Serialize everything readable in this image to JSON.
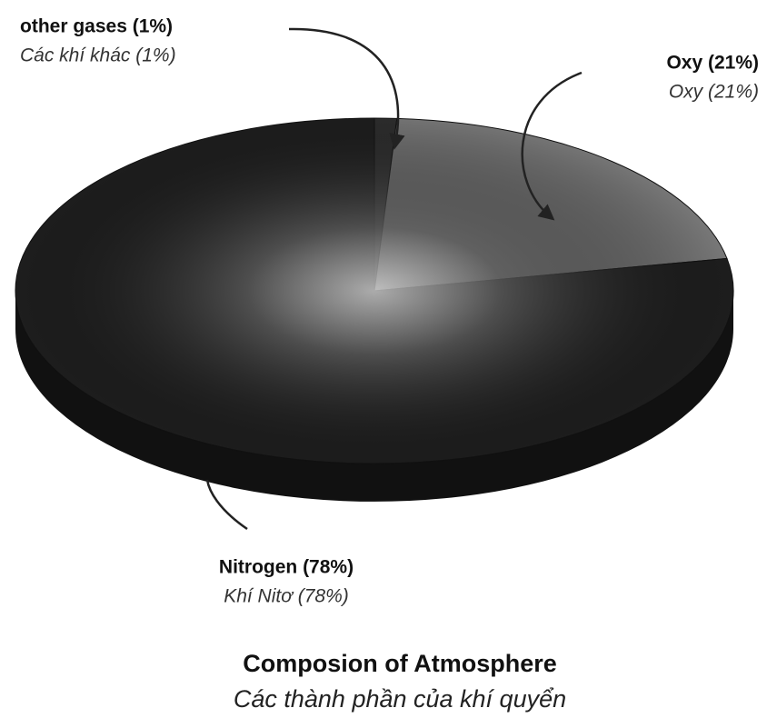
{
  "chart_data": {
    "type": "pie",
    "title": "Composion of Atmosphere",
    "subtitle": "Các thành phần của khí quyển",
    "categories": [
      "other gases (1%)",
      "Oxy (21%)",
      "Nitrogen (78%)"
    ],
    "categories_vi": [
      "Các khí khác (1%)",
      "Oxy (21%)",
      "Khí Nitơ (78%)"
    ],
    "values": [
      1,
      21,
      78
    ],
    "colors": [
      "#2e2e2e",
      "#7a7a7a",
      "#1e1e1e"
    ]
  }
}
